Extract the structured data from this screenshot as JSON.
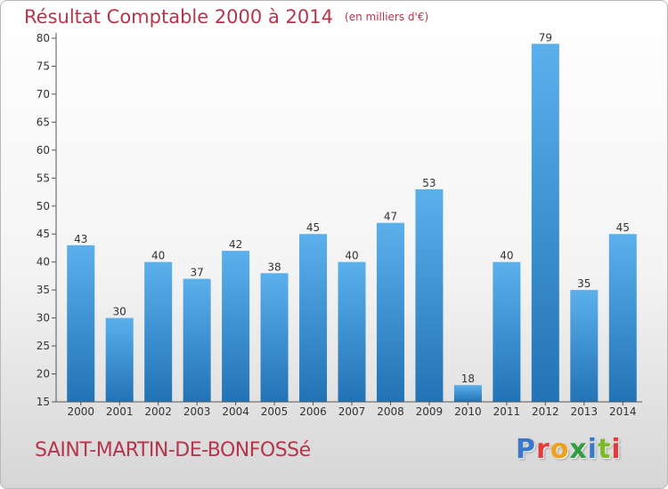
{
  "header": {
    "title": "Résultat Comptable 2000 à 2014",
    "unit": "(en milliers d'€)"
  },
  "footer": {
    "commune": "SAINT-MARTIN-DE-BONFOSSé",
    "logo_text": "Proxiti",
    "logo_colors": [
      "#3a78c8",
      "#e23b3b",
      "#f0a11c",
      "#2e9e3e",
      "#3a78c8",
      "#7ab929",
      "#e23b3b"
    ]
  },
  "colors": {
    "bar_light": "#5bb0ec",
    "bar_dark": "#2273b5",
    "text_accent": "#b5354c"
  },
  "chart_data": {
    "type": "bar",
    "title": "Résultat Comptable 2000 à 2014",
    "subtitle": "(en milliers d'€)",
    "categories": [
      "2000",
      "2001",
      "2002",
      "2003",
      "2004",
      "2005",
      "2006",
      "2007",
      "2008",
      "2009",
      "2010",
      "2011",
      "2012",
      "2013",
      "2014"
    ],
    "values": [
      43,
      30,
      40,
      37,
      42,
      38,
      45,
      40,
      47,
      53,
      18,
      40,
      79,
      35,
      45
    ],
    "ylim": [
      15,
      80
    ],
    "yticks": [
      15,
      20,
      25,
      30,
      35,
      40,
      45,
      50,
      55,
      60,
      65,
      70,
      75,
      80
    ],
    "grid": false,
    "data_labels": true
  }
}
